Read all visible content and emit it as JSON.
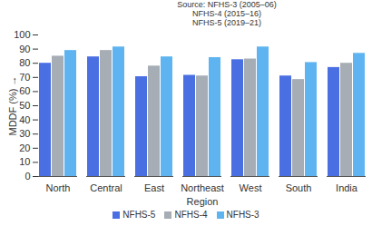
{
  "chart_data": {
    "type": "bar",
    "annotations": [
      "Source: NFHS-3 (2005–06)",
      "NFHS-4 (2015–16)",
      "NFHS-5 (2019–21)"
    ],
    "x_label": "Region",
    "y_label": "MDDF (%)",
    "categories": [
      "North",
      "Central",
      "East",
      "Northeast",
      "West",
      "South",
      "India"
    ],
    "series": [
      {
        "name": "NFHS-5",
        "color": "#4a6fe3",
        "values": [
          80,
          84.5,
          70.5,
          71.5,
          82.5,
          71,
          77
        ]
      },
      {
        "name": "NFHS-4",
        "color": "#a6adb4",
        "values": [
          85,
          89,
          78,
          71,
          83,
          68.5,
          80
        ]
      },
      {
        "name": "NFHS-3",
        "color": "#5eb4f0",
        "values": [
          89,
          91.5,
          84.5,
          84,
          91.5,
          80.5,
          87
        ]
      }
    ],
    "ylim": [
      0,
      100
    ],
    "yticks": [
      0,
      10,
      20,
      30,
      40,
      50,
      60,
      70,
      80,
      90,
      100
    ],
    "grid": false,
    "legend": "bottom"
  }
}
